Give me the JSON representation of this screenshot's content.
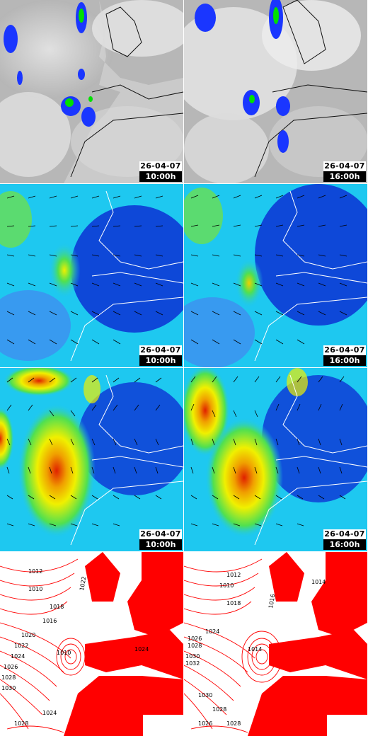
{
  "panels": [
    {
      "date": "26-04-07",
      "hour": "10:00h"
    },
    {
      "date": "26-04-07",
      "hour": "16:00h"
    },
    {
      "date": "26-04-07",
      "hour": "10:00h"
    },
    {
      "date": "26-04-07",
      "hour": "16:00h"
    },
    {
      "date": "26-04-07",
      "hour": "10:00h"
    },
    {
      "date": "26-04-07",
      "hour": "16:00h"
    }
  ],
  "isobars_left": [
    "1022",
    "1018",
    "1016",
    "1012",
    "1010",
    "1020",
    "1022",
    "1024",
    "1026",
    "1028",
    "1030",
    "1024",
    "1028",
    "1024",
    "1010"
  ],
  "isobars_right": [
    "1012",
    "1010",
    "1018",
    "1016",
    "1014",
    "1024",
    "1026",
    "1028",
    "1030",
    "1032",
    "1030",
    "1028",
    "1026",
    "1028",
    "1014"
  ],
  "colors": {
    "isobar": "#ff0000",
    "coast": "#ffffff",
    "satellite_bg": "#bdbdbd",
    "precip_blue": "#1030ff",
    "precip_green": "#00e000",
    "wind_low": "#0a1ed0",
    "wind_mid": "#1ec8f0",
    "wind_high": "#f0f000",
    "wind_peak": "#e02000"
  }
}
